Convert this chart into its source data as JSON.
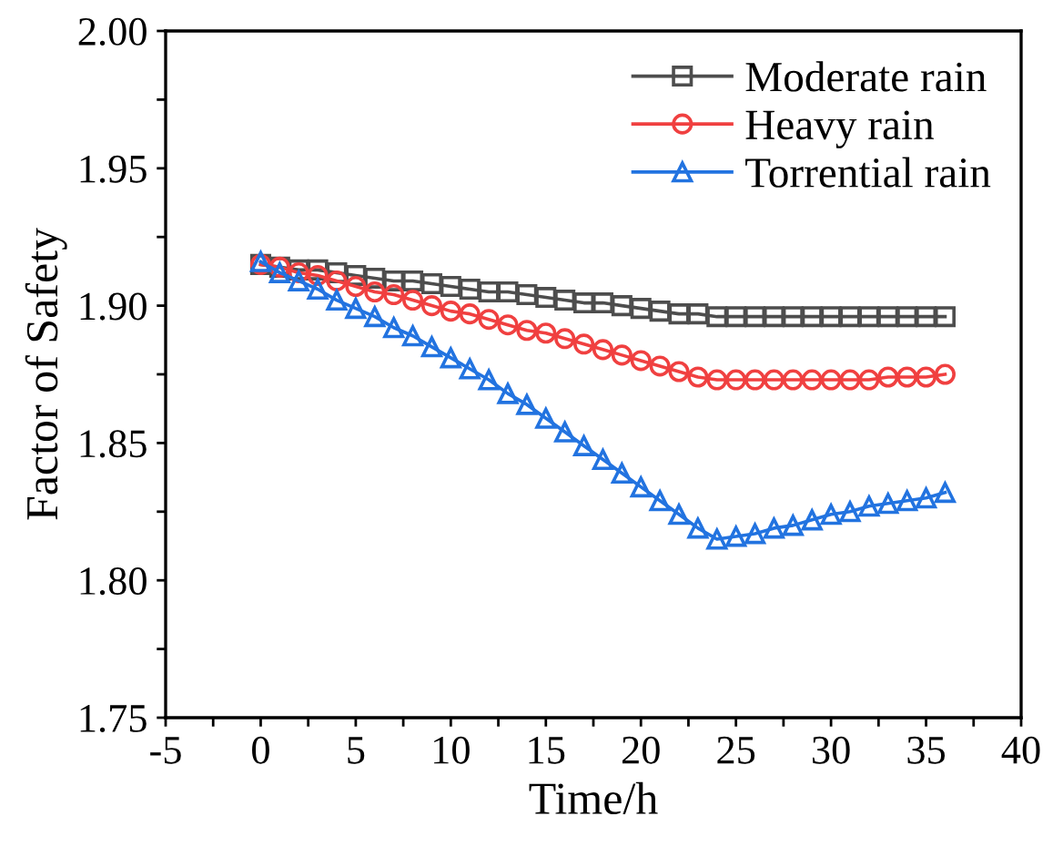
{
  "chart_data": {
    "type": "line",
    "xlabel": "Time/h",
    "ylabel": "Factor of Safety",
    "x": [
      0,
      1,
      2,
      3,
      4,
      5,
      6,
      7,
      8,
      9,
      10,
      11,
      12,
      13,
      14,
      15,
      16,
      17,
      18,
      19,
      20,
      21,
      22,
      23,
      24,
      25,
      26,
      27,
      28,
      29,
      30,
      31,
      32,
      33,
      34,
      35,
      36
    ],
    "series": [
      {
        "name": "Moderate rain",
        "color": "#4d4d4d",
        "marker": "square",
        "values": [
          1.915,
          1.914,
          1.913,
          1.913,
          1.912,
          1.911,
          1.91,
          1.909,
          1.909,
          1.908,
          1.907,
          1.906,
          1.905,
          1.905,
          1.904,
          1.903,
          1.902,
          1.901,
          1.901,
          1.9,
          1.899,
          1.898,
          1.897,
          1.897,
          1.896,
          1.896,
          1.896,
          1.896,
          1.896,
          1.896,
          1.896,
          1.896,
          1.896,
          1.896,
          1.896,
          1.896,
          1.896
        ]
      },
      {
        "name": "Heavy rain",
        "color": "#f04040",
        "marker": "circle",
        "values": [
          1.915,
          1.914,
          1.912,
          1.911,
          1.909,
          1.907,
          1.905,
          1.904,
          1.902,
          1.9,
          1.898,
          1.897,
          1.895,
          1.893,
          1.891,
          1.89,
          1.888,
          1.886,
          1.884,
          1.882,
          1.88,
          1.878,
          1.876,
          1.874,
          1.873,
          1.873,
          1.873,
          1.873,
          1.873,
          1.873,
          1.873,
          1.873,
          1.873,
          1.874,
          1.874,
          1.874,
          1.875
        ]
      },
      {
        "name": "Torrential rain",
        "color": "#2273e0",
        "marker": "triangle",
        "values": [
          1.916,
          1.912,
          1.909,
          1.906,
          1.902,
          1.899,
          1.896,
          1.892,
          1.889,
          1.885,
          1.881,
          1.877,
          1.873,
          1.868,
          1.864,
          1.859,
          1.854,
          1.849,
          1.844,
          1.839,
          1.834,
          1.829,
          1.824,
          1.819,
          1.815,
          1.816,
          1.817,
          1.819,
          1.82,
          1.822,
          1.824,
          1.825,
          1.827,
          1.828,
          1.829,
          1.83,
          1.832
        ]
      }
    ],
    "xlim": [
      -5,
      40
    ],
    "xticks": [
      -5,
      {
        "value": -2.5,
        "label": null
      },
      0,
      {
        "value": 2.5,
        "label": null
      },
      5,
      {
        "value": 7.5,
        "label": null
      },
      10,
      {
        "value": 12.5,
        "label": null
      },
      15,
      {
        "value": 17.5,
        "label": null
      },
      20,
      {
        "value": 22.5,
        "label": null
      },
      25,
      {
        "value": 27.5,
        "label": null
      },
      30,
      {
        "value": 32.5,
        "label": null
      },
      35,
      {
        "value": 37.5,
        "label": null
      },
      40
    ],
    "ylim": [
      1.75,
      2.0
    ],
    "yticks": [
      {
        "value": 1.75,
        "label": "1.75"
      },
      {
        "value": 1.775,
        "label": null
      },
      {
        "value": 1.8,
        "label": "1.80"
      },
      {
        "value": 1.825,
        "label": null
      },
      {
        "value": 1.85,
        "label": "1.85"
      },
      {
        "value": 1.875,
        "label": null
      },
      {
        "value": 1.9,
        "label": "1.90"
      },
      {
        "value": 1.925,
        "label": null
      },
      {
        "value": 1.95,
        "label": "1.95"
      },
      {
        "value": 1.975,
        "label": null
      },
      {
        "value": 2.0,
        "label": "2.00"
      }
    ],
    "grid": false,
    "legend": "top right",
    "line_style": "solid"
  }
}
